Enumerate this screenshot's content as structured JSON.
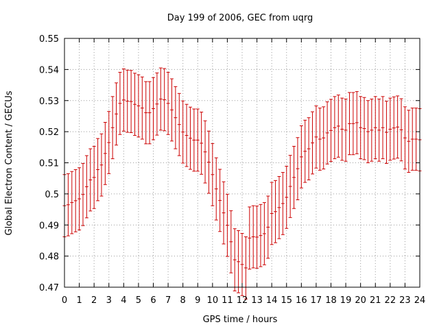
{
  "chart_data": {
    "type": "scatter",
    "title": "Day 199 of 2006, GEC from uqrg",
    "xlabel": "GPS time / hours",
    "ylabel": "Global Electron Content / GECUs",
    "xlim": [
      0,
      24
    ],
    "ylim": [
      0.47,
      0.55
    ],
    "xticks": [
      "0",
      "1",
      "2",
      "3",
      "4",
      "5",
      "6",
      "7",
      "8",
      "9",
      "10",
      "11",
      "12",
      "13",
      "14",
      "15",
      "16",
      "17",
      "18",
      "19",
      "20",
      "21",
      "22",
      "23",
      "24"
    ],
    "yticks": [
      "0.47",
      "0.48",
      "0.49",
      "0.5",
      "0.51",
      "0.52",
      "0.53",
      "0.54",
      "0.55"
    ],
    "grid": true,
    "error_bars": true,
    "error_halfwidth": 0.01,
    "color": "#cc0000",
    "x": [
      0,
      0.25,
      0.5,
      0.75,
      1,
      1.25,
      1.5,
      1.75,
      2,
      2.25,
      2.5,
      2.75,
      3,
      3.25,
      3.5,
      3.75,
      4,
      4.25,
      4.5,
      4.75,
      5,
      5.25,
      5.5,
      5.75,
      6,
      6.25,
      6.5,
      6.75,
      7,
      7.25,
      7.5,
      7.75,
      8,
      8.25,
      8.5,
      8.75,
      9,
      9.25,
      9.5,
      9.75,
      10,
      10.25,
      10.5,
      10.75,
      11,
      11.25,
      11.5,
      11.75,
      12,
      12.25,
      12.5,
      12.75,
      13,
      13.25,
      13.5,
      13.75,
      14,
      14.25,
      14.5,
      14.75,
      15,
      15.25,
      15.5,
      15.75,
      16,
      16.25,
      16.5,
      16.75,
      17,
      17.25,
      17.5,
      17.75,
      18,
      18.25,
      18.5,
      18.75,
      19,
      19.25,
      19.5,
      19.75,
      20,
      20.25,
      20.5,
      20.75,
      21,
      21.25,
      21.5,
      21.75,
      22,
      22.25,
      22.5,
      22.75,
      23,
      23.25,
      23.5,
      23.75,
      24
    ],
    "y": [
      0.4962,
      0.4965,
      0.4972,
      0.4978,
      0.4984,
      0.4998,
      0.5023,
      0.5045,
      0.5053,
      0.5078,
      0.5093,
      0.513,
      0.5165,
      0.5213,
      0.5257,
      0.5291,
      0.5302,
      0.5298,
      0.5297,
      0.5288,
      0.5283,
      0.5276,
      0.5261,
      0.5261,
      0.5274,
      0.5289,
      0.5305,
      0.5303,
      0.5291,
      0.527,
      0.5245,
      0.5223,
      0.5199,
      0.5188,
      0.5179,
      0.5173,
      0.5173,
      0.5163,
      0.5135,
      0.5102,
      0.5062,
      0.5016,
      0.4979,
      0.4939,
      0.4899,
      0.4846,
      0.4788,
      0.4782,
      0.4773,
      0.4762,
      0.4858,
      0.4862,
      0.4861,
      0.4866,
      0.4872,
      0.4893,
      0.4937,
      0.4943,
      0.4956,
      0.4969,
      0.4989,
      0.5024,
      0.5053,
      0.5081,
      0.5119,
      0.5137,
      0.5145,
      0.5164,
      0.5183,
      0.5176,
      0.518,
      0.5196,
      0.5204,
      0.5213,
      0.5218,
      0.5208,
      0.5205,
      0.5226,
      0.5226,
      0.5229,
      0.5213,
      0.521,
      0.52,
      0.5205,
      0.5213,
      0.5205,
      0.5213,
      0.5198,
      0.5208,
      0.5212,
      0.5215,
      0.5206,
      0.518,
      0.5169,
      0.5176,
      0.5176,
      0.5174
    ]
  }
}
